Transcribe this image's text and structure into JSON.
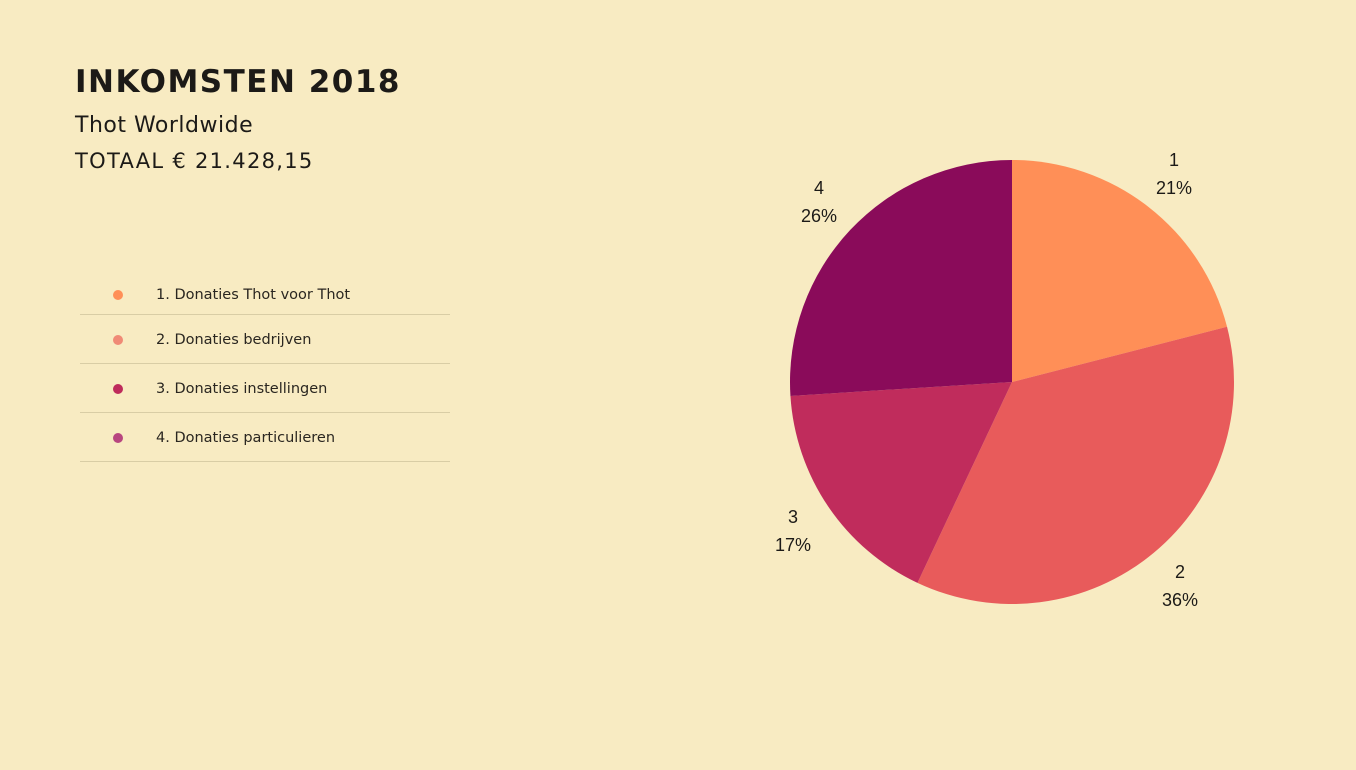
{
  "header": {
    "title": "INKOMSTEN 2018",
    "subtitle": "Thot Worldwide",
    "total": "TOTAAL € 21.428,15"
  },
  "legend": [
    {
      "label": "1. Donaties Thot voor Thot",
      "color": "#ff8f57"
    },
    {
      "label": "2. Donaties bedrijven",
      "color": "#f08a76"
    },
    {
      "label": "3. Donaties instellingen",
      "color": "#be2b5b"
    },
    {
      "label": "4. Donaties particulieren",
      "color": "#b8467f"
    }
  ],
  "chart_data": {
    "type": "pie",
    "slices": [
      {
        "label": "1",
        "percent_label": "21%",
        "value": 21,
        "color": "#ff8f57"
      },
      {
        "label": "2",
        "percent_label": "36%",
        "value": 36,
        "color": "#e85b5b"
      },
      {
        "label": "3",
        "percent_label": "17%",
        "value": 17,
        "color": "#c02c5c"
      },
      {
        "label": "4",
        "percent_label": "26%",
        "value": 26,
        "color": "#8a0b5a"
      }
    ]
  }
}
